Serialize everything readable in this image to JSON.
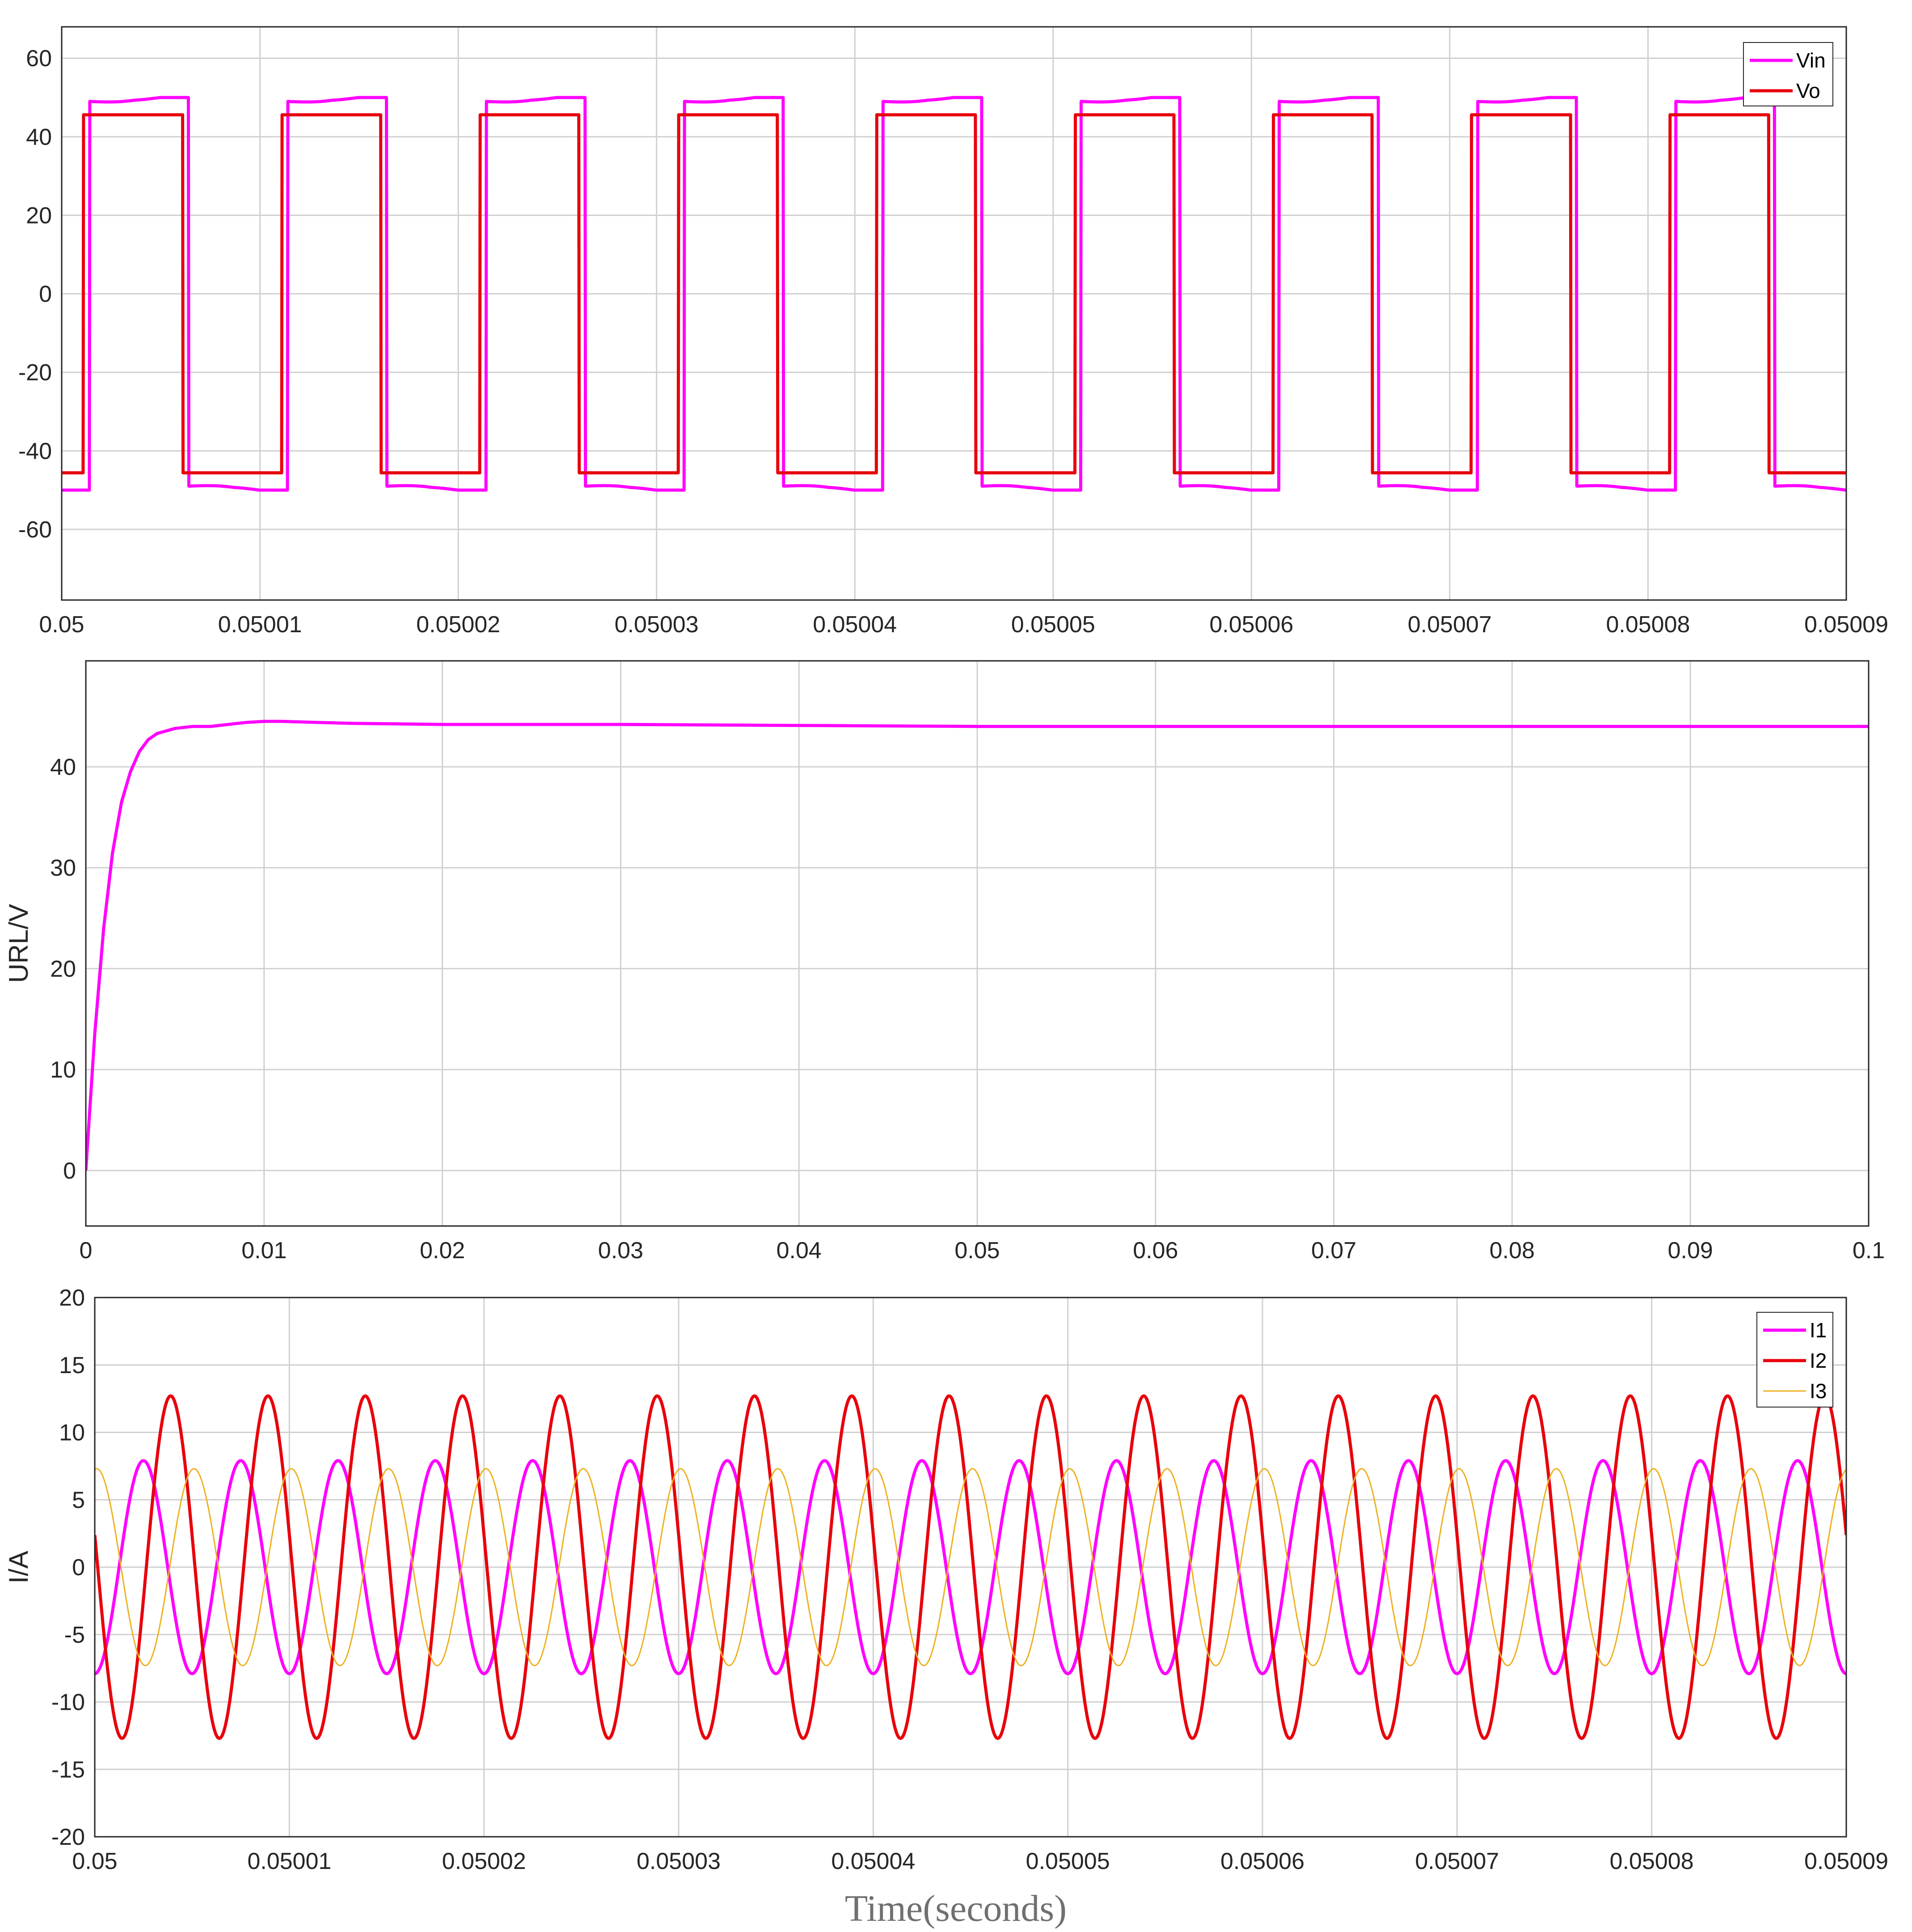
{
  "colors": {
    "magenta": "#ff00ff",
    "red": "#e8000b",
    "orange": "#edb120",
    "grid": "#d0d0d0",
    "axis": "#262626"
  },
  "figure": {
    "xlabel": "Time(seconds)"
  },
  "chart_data": [
    {
      "type": "line",
      "title": "",
      "xlabel": "",
      "ylabel": "",
      "xlim": [
        0.05,
        0.05009
      ],
      "ylim": [
        -78,
        68
      ],
      "xticks": [
        0.05,
        0.05001,
        0.05002,
        0.05003,
        0.05004,
        0.05005,
        0.05006,
        0.05007,
        0.05008,
        0.05009
      ],
      "xtick_labels": [
        "0.05",
        "0.05001",
        "0.05002",
        "0.05003",
        "0.05004",
        "0.05005",
        "0.05006",
        "0.05007",
        "0.05008",
        "0.05009"
      ],
      "yticks": [
        60,
        40,
        20,
        0,
        -20,
        -40,
        -60
      ],
      "ytick_labels": [
        "60",
        "40",
        "20",
        "0",
        "-20",
        "-40",
        "-60"
      ],
      "grid": true,
      "legend_position": "top-right",
      "series": [
        {
          "name": "Vin",
          "color": "#ff00ff",
          "waveform": "square",
          "high_level": 50,
          "low_level": -50,
          "period": 1e-05,
          "first_rising_edge": 0.0500014,
          "duty": 0.5,
          "flat_top_start": 49,
          "dip_amplitude": 1.5
        },
        {
          "name": "Vo",
          "color": "#e8000b",
          "waveform": "square",
          "high_level": 45.6,
          "low_level": -45.6,
          "period": 1e-05,
          "first_rising_edge": 0.0500011,
          "duty": 0.5
        }
      ]
    },
    {
      "type": "line",
      "title": "",
      "xlabel": "",
      "ylabel": "URL/V",
      "xlim": [
        0,
        0.1
      ],
      "ylim": [
        -5.5,
        50.5
      ],
      "xticks": [
        0,
        0.01,
        0.02,
        0.03,
        0.04,
        0.05,
        0.06,
        0.07,
        0.08,
        0.09,
        0.1
      ],
      "xtick_labels": [
        "0",
        "0.01",
        "0.02",
        "0.03",
        "0.04",
        "0.05",
        "0.06",
        "0.07",
        "0.08",
        "0.09",
        "0.1"
      ],
      "yticks": [
        40,
        30,
        20,
        10,
        0
      ],
      "ytick_labels": [
        "40",
        "30",
        "20",
        "10",
        "0"
      ],
      "grid": true,
      "series": [
        {
          "color": "#ff00ff",
          "x": [
            0,
            0.0005,
            0.001,
            0.0015,
            0.002,
            0.0025,
            0.003,
            0.0035,
            0.004,
            0.005,
            0.006,
            0.007,
            0.008,
            0.009,
            0.01,
            0.011,
            0.013,
            0.015,
            0.02,
            0.03,
            0.04,
            0.05,
            0.06,
            0.07,
            0.08,
            0.09,
            0.1
          ],
          "y": [
            0,
            13.5,
            24.0,
            31.5,
            36.5,
            39.5,
            41.5,
            42.7,
            43.3,
            43.8,
            44.0,
            44.0,
            44.2,
            44.4,
            44.5,
            44.5,
            44.4,
            44.3,
            44.2,
            44.2,
            44.1,
            44.0,
            44.0,
            44.0,
            44.0,
            44.0,
            44.0
          ]
        }
      ]
    },
    {
      "type": "line",
      "title": "",
      "xlabel": "",
      "ylabel": "I/A",
      "xlim": [
        0.05,
        0.05009
      ],
      "ylim": [
        -20,
        20
      ],
      "xticks": [
        0.05,
        0.05001,
        0.05002,
        0.05003,
        0.05004,
        0.05005,
        0.05006,
        0.05007,
        0.05008,
        0.05009
      ],
      "xtick_labels": [
        "0.05",
        "0.05001",
        "0.05002",
        "0.05003",
        "0.05004",
        "0.05005",
        "0.05006",
        "0.05007",
        "0.05008",
        "0.05009"
      ],
      "yticks": [
        20,
        15,
        10,
        5,
        0,
        -5,
        -10,
        -15,
        -20
      ],
      "ytick_labels": [
        "20",
        "15",
        "10",
        "5",
        "0",
        "-5",
        "-10",
        "-15",
        "-20"
      ],
      "grid": true,
      "legend_position": "top-right",
      "series": [
        {
          "name": "I1",
          "color": "#ff00ff",
          "waveform": "sine",
          "amplitude": 7.9,
          "period": 5e-06,
          "first_peak": 0.0500025
        },
        {
          "name": "I2",
          "color": "#e8000b",
          "waveform": "sine",
          "amplitude": 12.7,
          "period": 5e-06,
          "first_peak": 0.0500039
        },
        {
          "name": "I3",
          "color": "#edb120",
          "waveform": "sine",
          "amplitude": 7.3,
          "period": 5e-06,
          "first_peak": 0.0500001
        }
      ]
    }
  ]
}
